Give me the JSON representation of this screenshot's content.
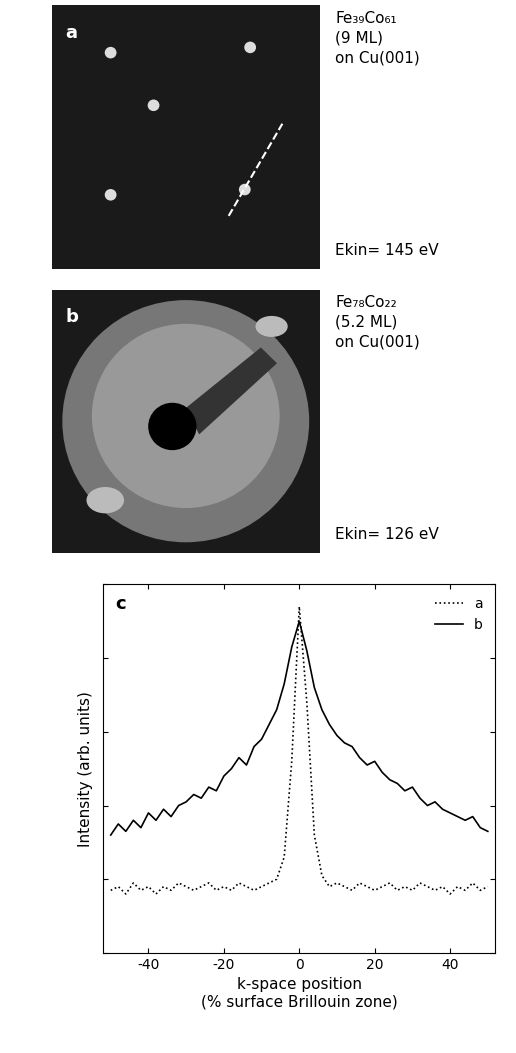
{
  "panels": [
    {
      "letter": "a",
      "lines": [
        "Fe₃₉Co₆₁",
        "(9 ML)",
        "on Cu(001)"
      ],
      "energy": "Ekin= 145 eV"
    },
    {
      "letter": "b",
      "lines": [
        "Fe₇₈Co₂₂",
        "(5.2 ML)",
        "on Cu(001)"
      ],
      "energy": "Ekin= 126 eV"
    }
  ],
  "chart_data": {
    "type": "line",
    "letter": "c",
    "x_label": "k-space position\n(% surface Brillouin zone)",
    "y_label": "Intensity (arb. units)",
    "x": [
      -50,
      -48,
      -46,
      -44,
      -42,
      -40,
      -38,
      -36,
      -34,
      -32,
      -30,
      -28,
      -26,
      -24,
      -22,
      -20,
      -18,
      -16,
      -14,
      -12,
      -10,
      -8,
      -6,
      -4,
      -2,
      0,
      2,
      4,
      6,
      8,
      10,
      12,
      14,
      16,
      18,
      20,
      22,
      24,
      26,
      28,
      30,
      32,
      34,
      36,
      38,
      40,
      42,
      44,
      46,
      48,
      50
    ],
    "series": [
      {
        "name": "a",
        "color": "#000000",
        "line_style": "dotted",
        "values": [
          1.7,
          1.8,
          1.6,
          1.9,
          1.7,
          1.8,
          1.6,
          1.8,
          1.7,
          1.9,
          1.8,
          1.7,
          1.8,
          1.9,
          1.7,
          1.8,
          1.7,
          1.9,
          1.8,
          1.7,
          1.8,
          1.9,
          2.0,
          2.6,
          5.2,
          9.4,
          6.8,
          3.2,
          2.1,
          1.8,
          1.9,
          1.8,
          1.7,
          1.9,
          1.8,
          1.7,
          1.8,
          1.9,
          1.7,
          1.8,
          1.7,
          1.9,
          1.8,
          1.7,
          1.8,
          1.6,
          1.8,
          1.7,
          1.9,
          1.7,
          1.8
        ]
      },
      {
        "name": "b",
        "color": "#000000",
        "line_style": "solid",
        "values": [
          3.2,
          3.5,
          3.3,
          3.6,
          3.4,
          3.8,
          3.6,
          3.9,
          3.7,
          4.0,
          4.1,
          4.3,
          4.2,
          4.5,
          4.4,
          4.8,
          5.0,
          5.3,
          5.1,
          5.6,
          5.8,
          6.2,
          6.6,
          7.3,
          8.3,
          9.0,
          8.2,
          7.2,
          6.6,
          6.2,
          5.9,
          5.7,
          5.6,
          5.3,
          5.1,
          5.2,
          4.9,
          4.7,
          4.6,
          4.4,
          4.5,
          4.2,
          4.0,
          4.1,
          3.9,
          3.8,
          3.7,
          3.6,
          3.7,
          3.4,
          3.3
        ]
      }
    ],
    "xlim": [
      -52,
      52
    ],
    "xticks": [
      -40,
      -20,
      0,
      20,
      40
    ],
    "ylim": [
      0,
      10
    ],
    "yticks": [
      0,
      2,
      4,
      6,
      8,
      10
    ],
    "tick_labels": "x",
    "grid": false,
    "legend": "upper right"
  }
}
